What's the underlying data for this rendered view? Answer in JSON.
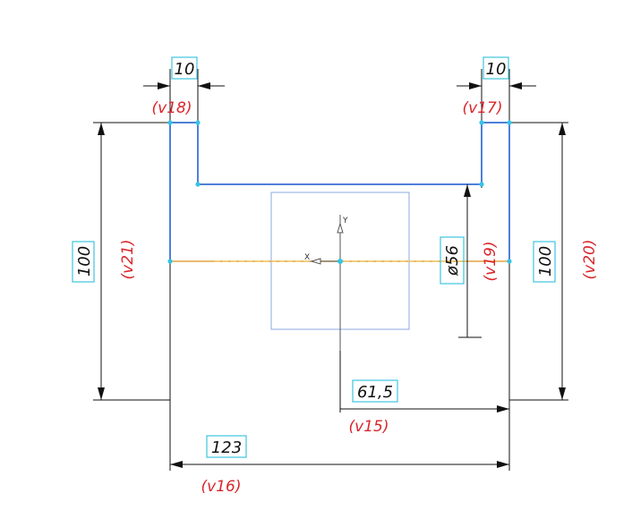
{
  "colors": {
    "profile": "#4f7fd8",
    "dimension": "#111111",
    "variable": "#d9262b",
    "value_box": "#3ec5e0",
    "point": "#35c4e6",
    "axis_line": "#e4a341",
    "axis_fill": "#f2e06a",
    "viewport": "#8aa8e0"
  },
  "icons": {
    "origin": "origin-marker-icon",
    "points": "point-marker-icon"
  },
  "axes": {
    "x": "X",
    "y": "Y"
  },
  "dimensions": {
    "top_left_width": {
      "value": "10",
      "variable": "(v18)"
    },
    "top_right_width": {
      "value": "10",
      "variable": "(v17)"
    },
    "left_height": {
      "value": "100",
      "variable": "(v21)"
    },
    "right_height": {
      "value": "100",
      "variable": "(v20)"
    },
    "diameter": {
      "value": "ø56",
      "variable": "(v19)"
    },
    "half_width": {
      "value": "61,5",
      "variable": "(v15)"
    },
    "total_width": {
      "value": "123",
      "variable": "(v16)"
    }
  }
}
